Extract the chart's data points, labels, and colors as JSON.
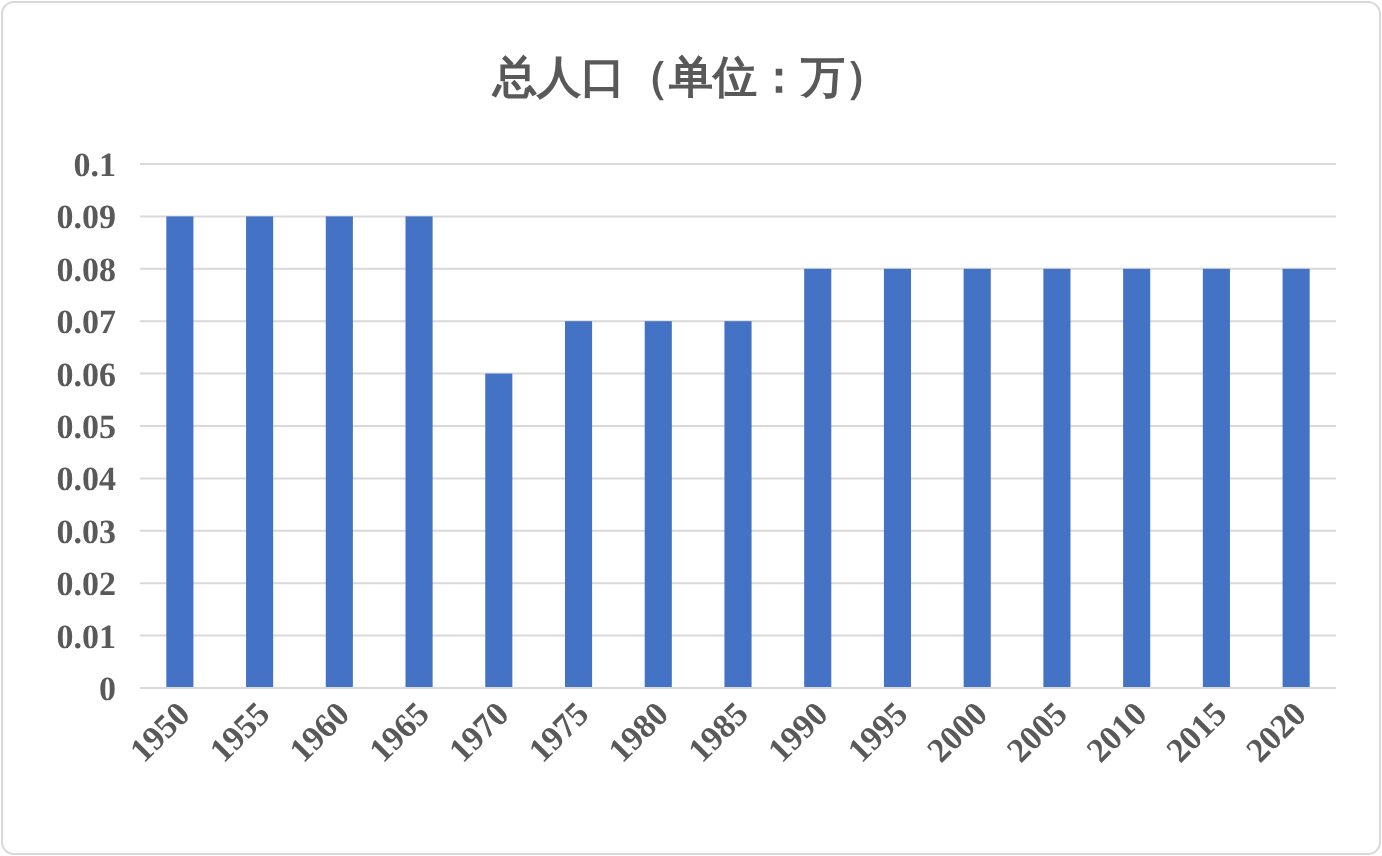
{
  "chart_data": {
    "type": "bar",
    "title": "总人口（单位：万）",
    "categories": [
      "1950",
      "1955",
      "1960",
      "1965",
      "1970",
      "1975",
      "1980",
      "1985",
      "1990",
      "1995",
      "2000",
      "2005",
      "2010",
      "2015",
      "2020"
    ],
    "values": [
      0.09,
      0.09,
      0.09,
      0.09,
      0.06,
      0.07,
      0.07,
      0.07,
      0.08,
      0.08,
      0.08,
      0.08,
      0.08,
      0.08,
      0.08
    ],
    "color": "#4472c4",
    "ylim": [
      0,
      0.1
    ],
    "yticks": [
      0,
      0.01,
      0.02,
      0.03,
      0.04,
      0.05,
      0.06,
      0.07,
      0.08,
      0.09,
      0.1
    ],
    "grid": "y"
  }
}
